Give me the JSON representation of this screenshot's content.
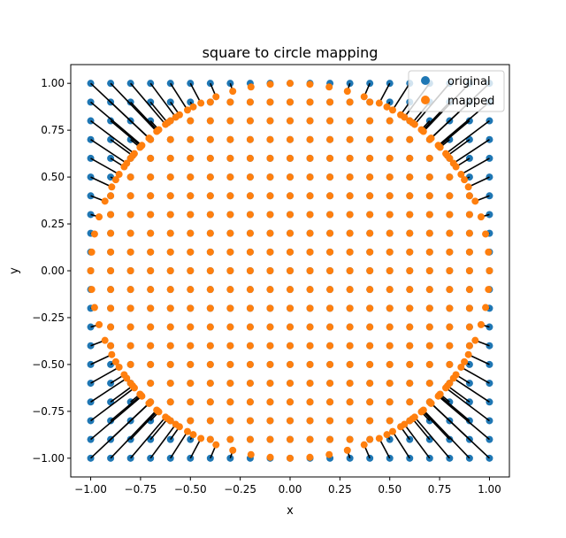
{
  "chart_data": {
    "type": "scatter",
    "title": "square to circle mapping",
    "xlabel": "x",
    "ylabel": "y",
    "xlim": [
      -1.1,
      1.1
    ],
    "ylim": [
      -1.1,
      1.1
    ],
    "grid": false,
    "legend_position": "top-right",
    "grid_points_per_axis": 21,
    "grid_range": [
      -1.0,
      1.0
    ],
    "mapping_rule": "points with radius > 1 are mapped to the same angle at radius 1; points inside the unit circle are unchanged",
    "x_ticks": [
      -1.0,
      -0.75,
      -0.5,
      -0.25,
      0.0,
      0.25,
      0.5,
      0.75,
      1.0
    ],
    "x_tick_labels": [
      "−1.00",
      "−0.75",
      "−0.50",
      "−0.25",
      "0.00",
      "0.25",
      "0.50",
      "0.75",
      "1.00"
    ],
    "y_ticks": [
      -1.0,
      -0.75,
      -0.5,
      -0.25,
      0.0,
      0.25,
      0.5,
      0.75,
      1.0
    ],
    "y_tick_labels": [
      "−1.00",
      "−0.75",
      "−0.50",
      "−0.25",
      "0.00",
      "0.25",
      "0.50",
      "0.75",
      "1.00"
    ],
    "series": [
      {
        "name": "original",
        "color": "#1f77b4"
      },
      {
        "name": "mapped",
        "color": "#ff7f0e"
      }
    ],
    "connector_color": "#000000"
  }
}
